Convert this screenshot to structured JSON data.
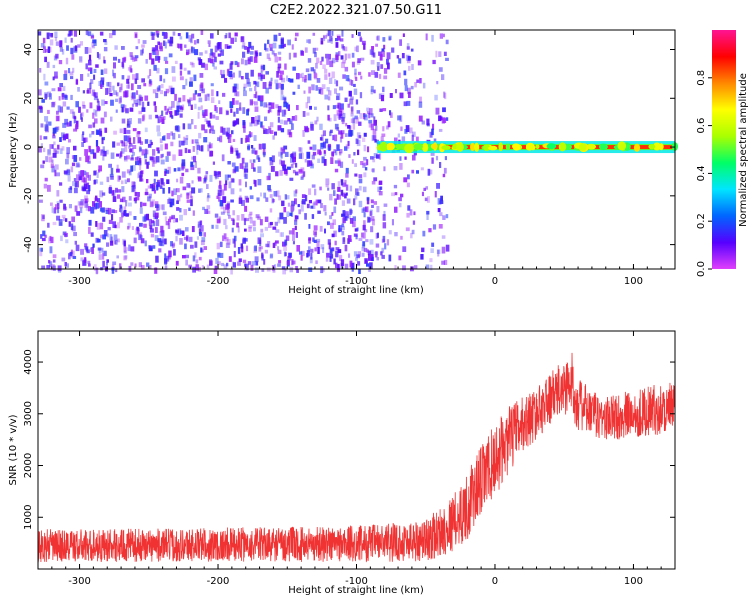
{
  "title": "C2E2.2022.321.07.50.G11",
  "chart_data": [
    {
      "type": "heatmap",
      "xlabel": "Height of straight line (km)",
      "ylabel": "Frequency (Hz)",
      "xlim": [
        -330,
        130
      ],
      "ylim": [
        -50,
        48
      ],
      "xticks": [
        -300,
        -200,
        -100,
        0,
        100
      ],
      "yticks": [
        -40,
        -20,
        0,
        20,
        40
      ],
      "colorbar": {
        "label": "Normalized spectral amplitude",
        "range": [
          0.0,
          1.0
        ],
        "ticks": [
          0.0,
          0.2,
          0.4,
          0.6,
          0.8
        ],
        "colormap": [
          "#e040fb",
          "#5500ff",
          "#0066ff",
          "#00e5ff",
          "#00ff66",
          "#aaff00",
          "#ffff00",
          "#ff8800",
          "#ff0000",
          "#ff1493"
        ]
      },
      "ridge": {
        "frequency_hz": 0,
        "onset_km": -85,
        "amplitude_before": 0.35,
        "amplitude_after": 0.85
      },
      "noise_amplitude": 0.15,
      "noise_extent_km": [
        -330,
        -35
      ]
    },
    {
      "type": "line",
      "xlabel": "Height of straight line (km)",
      "ylabel": "SNR (10 * v/v)",
      "xlim": [
        -330,
        130
      ],
      "ylim": [
        0,
        4600
      ],
      "xticks": [
        -300,
        -200,
        -100,
        0,
        100
      ],
      "yticks": [
        1000,
        2000,
        3000,
        4000
      ],
      "series": [
        {
          "color": "#f03232",
          "x": [
            -330,
            -300,
            -250,
            -200,
            -150,
            -100,
            -70,
            -50,
            -40,
            -30,
            -20,
            -10,
            0,
            10,
            20,
            30,
            40,
            50,
            55,
            60,
            70,
            80,
            90,
            100,
            110,
            120,
            130
          ],
          "mean": [
            450,
            450,
            460,
            470,
            480,
            490,
            520,
            560,
            700,
            900,
            1200,
            1700,
            2100,
            2500,
            2800,
            3000,
            3300,
            3500,
            3600,
            3200,
            3000,
            2900,
            2950,
            3000,
            3050,
            3100,
            3100
          ],
          "spread": [
            320,
            320,
            320,
            330,
            340,
            360,
            380,
            420,
            480,
            550,
            650,
            700,
            700,
            650,
            550,
            500,
            500,
            550,
            650,
            520,
            450,
            450,
            450,
            470,
            480,
            500,
            500
          ]
        }
      ]
    }
  ]
}
